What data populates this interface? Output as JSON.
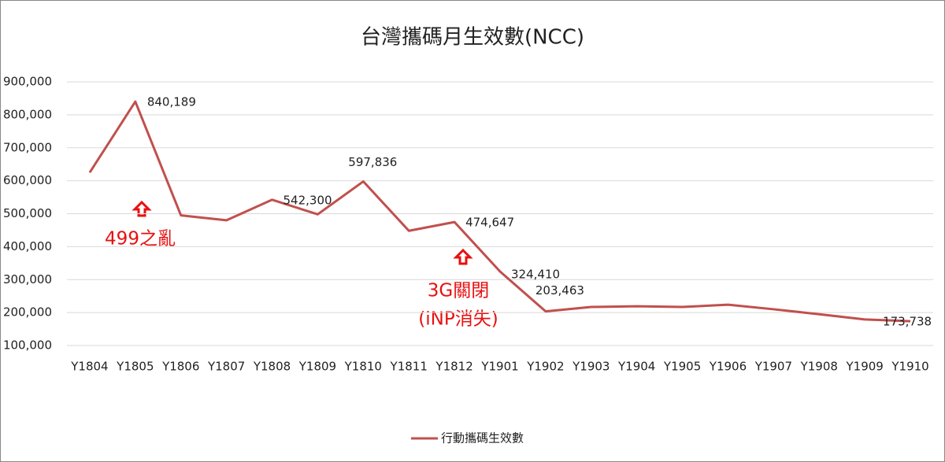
{
  "chart_data": {
    "type": "line",
    "title": "台灣攜碼月生效數(NCC)",
    "categories": [
      "Y1804",
      "Y1805",
      "Y1806",
      "Y1807",
      "Y1808",
      "Y1809",
      "Y1810",
      "Y1811",
      "Y1812",
      "Y1901",
      "Y1902",
      "Y1903",
      "Y1904",
      "Y1905",
      "Y1906",
      "Y1907",
      "Y1908",
      "Y1909",
      "Y1910"
    ],
    "series": [
      {
        "name": "行動攜碼生效數",
        "color": "#c0504d",
        "values": [
          625000,
          840189,
          495000,
          480000,
          542300,
          498000,
          597836,
          448000,
          474647,
          324410,
          203463,
          217000,
          219000,
          217000,
          224000,
          210000,
          195000,
          179000,
          173738
        ],
        "value_labels": [
          null,
          "840,189",
          null,
          null,
          "542,300",
          null,
          "597,836",
          null,
          "474,647",
          "324,410",
          "203,463",
          null,
          null,
          null,
          null,
          null,
          null,
          null,
          "173,738"
        ]
      }
    ],
    "ylim": [
      100000,
      900000
    ],
    "yticks": [
      {
        "value": 100000,
        "label": "100,000"
      },
      {
        "value": 200000,
        "label": "200,000"
      },
      {
        "value": 300000,
        "label": "300,000"
      },
      {
        "value": 400000,
        "label": "400,000"
      },
      {
        "value": 500000,
        "label": "500,000"
      },
      {
        "value": 600000,
        "label": "600,000"
      },
      {
        "value": 700000,
        "label": "700,000"
      },
      {
        "value": 800000,
        "label": "800,000"
      },
      {
        "value": 900000,
        "label": "900,000"
      }
    ],
    "grid": true,
    "legend": "bottom",
    "annotations": [
      "499之亂",
      "3G關閉",
      "(iNP消失)"
    ],
    "annotation_color": "#e8100f"
  }
}
